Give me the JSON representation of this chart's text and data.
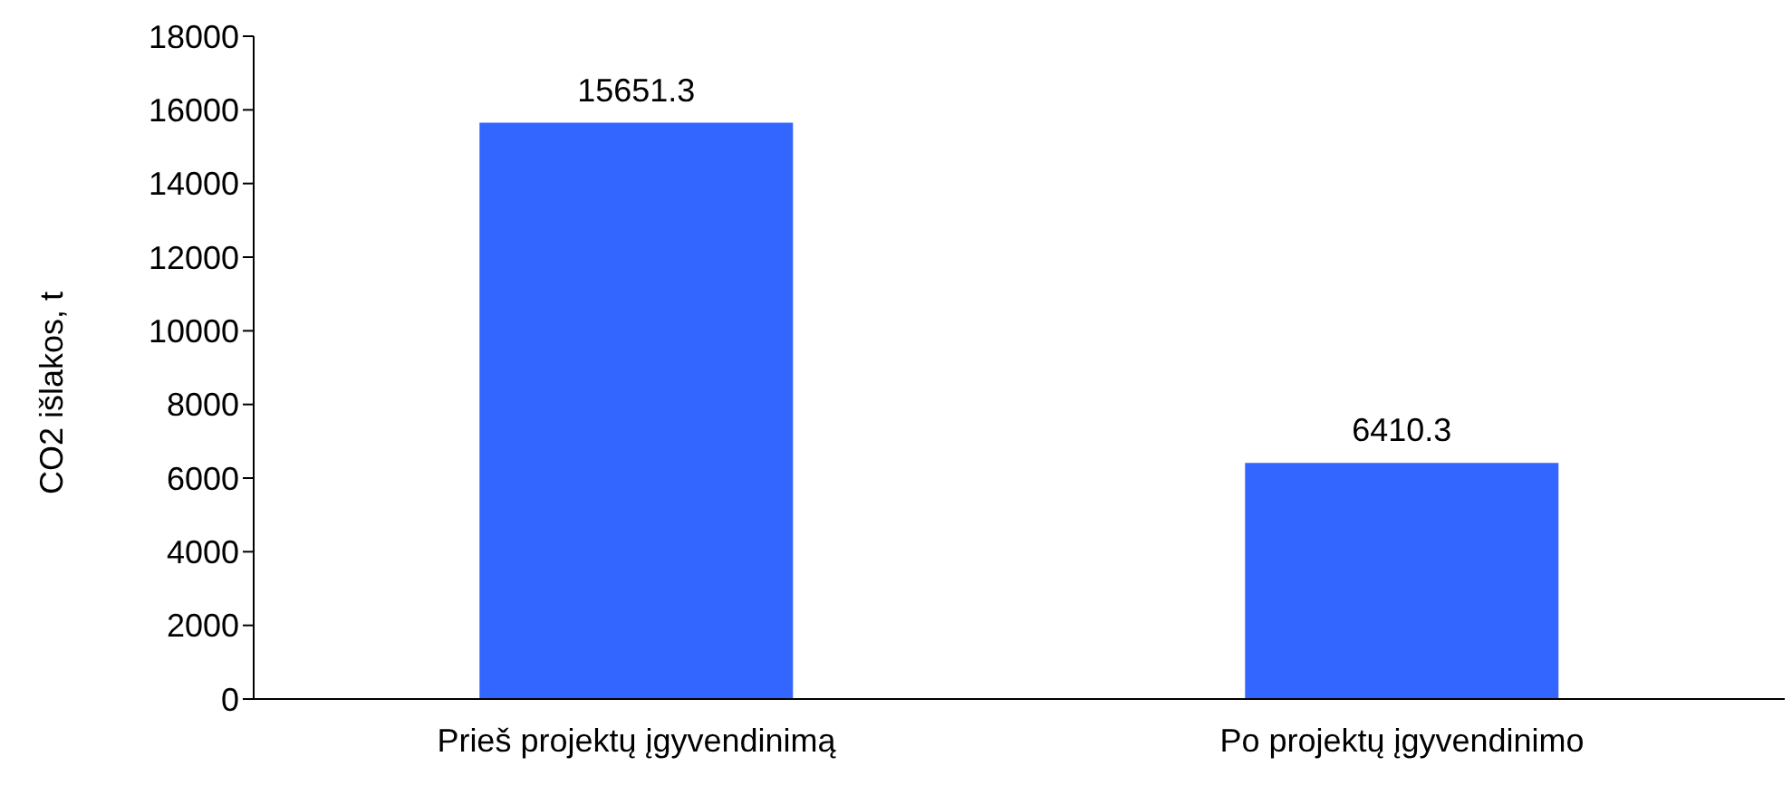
{
  "chart_data": {
    "type": "bar",
    "categories": [
      "Prieš projektų įgyvendinimą",
      "Po projektų įgyvendinimo"
    ],
    "values": [
      15651.3,
      6410.3
    ],
    "color": "#3366ff",
    "ylabel": "CO2 išlakos, t",
    "ylim": [
      0,
      18000
    ],
    "yticks": [
      0,
      2000,
      4000,
      6000,
      8000,
      10000,
      12000,
      14000,
      16000,
      18000
    ],
    "data_labels": true,
    "grid": false
  }
}
